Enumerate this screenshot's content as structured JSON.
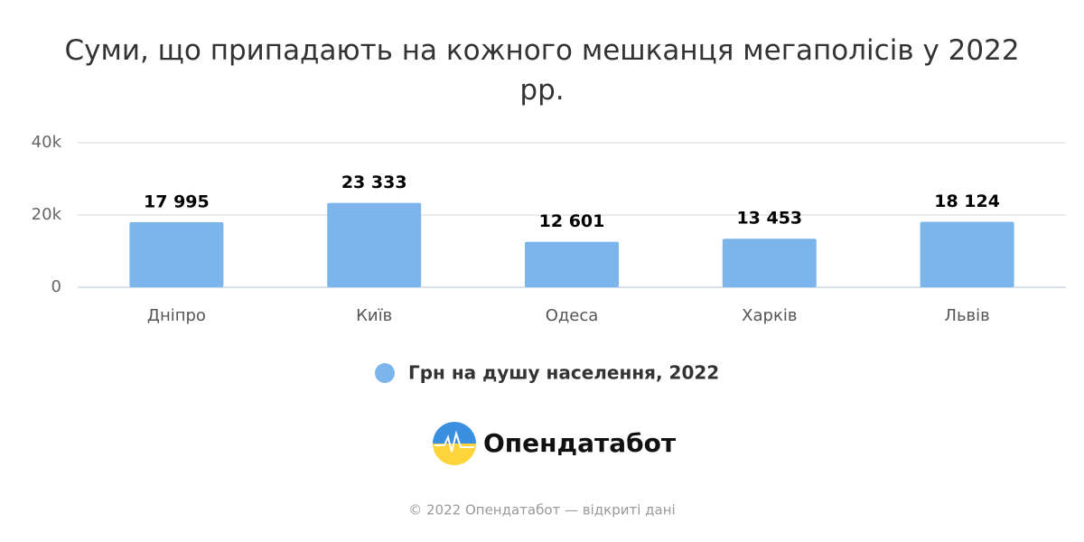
{
  "chart_data": {
    "type": "bar",
    "title": "Суми, що припадають на кожного мешканця мегаполісів у 2022 рр.",
    "categories": [
      "Дніпро",
      "Київ",
      "Одеса",
      "Харків",
      "Львів"
    ],
    "series": [
      {
        "name": "Грн на душу населення, 2022",
        "color": "#7cb5ec",
        "values": [
          17995,
          23333,
          12601,
          13453,
          18124
        ],
        "value_labels": [
          "17 995",
          "23 333",
          "12 601",
          "13 453",
          "18 124"
        ]
      }
    ],
    "ylim": [
      0,
      40000
    ],
    "yticks": [
      0,
      {
        "value": 20000,
        "label": "20k"
      },
      {
        "value": 40000,
        "label": "40k"
      }
    ],
    "grid": true
  },
  "logo": "Опендатабот",
  "footer": "© 2022 Опендатабот — відкриті дані"
}
